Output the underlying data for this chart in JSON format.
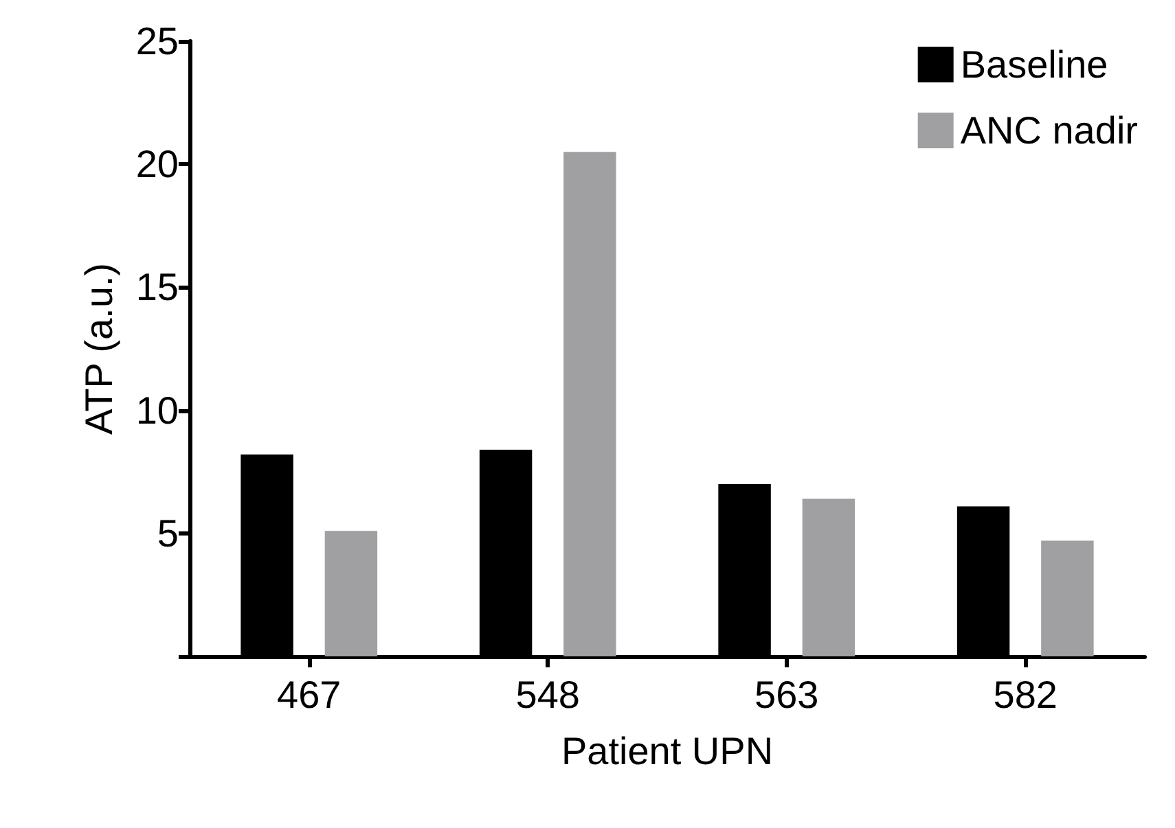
{
  "chart_data": {
    "type": "bar",
    "xlabel": "Patient UPN",
    "ylabel": "ATP (a.u.)",
    "categories": [
      "467",
      "548",
      "563",
      "582"
    ],
    "series": [
      {
        "name": "Baseline",
        "color": "#000000",
        "values": [
          8.2,
          8.4,
          7.0,
          6.1
        ]
      },
      {
        "name": "ANC nadir",
        "color": "#a0a0a3",
        "values": [
          5.1,
          20.5,
          6.4,
          4.7
        ]
      }
    ],
    "ylim": [
      0,
      25
    ],
    "yticks": [
      {
        "value": 0,
        "label": null
      },
      5,
      10,
      15,
      20,
      25
    ],
    "grid": false,
    "legend": "top right"
  }
}
